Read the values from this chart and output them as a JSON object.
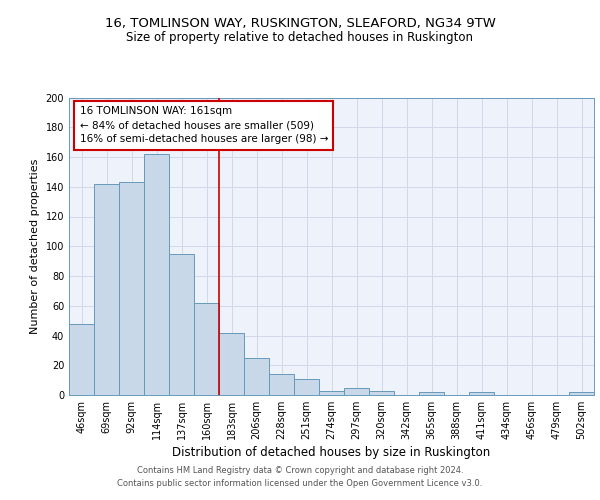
{
  "title1": "16, TOMLINSON WAY, RUSKINGTON, SLEAFORD, NG34 9TW",
  "title2": "Size of property relative to detached houses in Ruskington",
  "xlabel": "Distribution of detached houses by size in Ruskington",
  "ylabel": "Number of detached properties",
  "categories": [
    "46sqm",
    "69sqm",
    "92sqm",
    "114sqm",
    "137sqm",
    "160sqm",
    "183sqm",
    "206sqm",
    "228sqm",
    "251sqm",
    "274sqm",
    "297sqm",
    "320sqm",
    "342sqm",
    "365sqm",
    "388sqm",
    "411sqm",
    "434sqm",
    "456sqm",
    "479sqm",
    "502sqm"
  ],
  "values": [
    48,
    142,
    143,
    162,
    95,
    62,
    42,
    25,
    14,
    11,
    3,
    5,
    3,
    0,
    2,
    0,
    2,
    0,
    0,
    0,
    2
  ],
  "bar_color": "#c8d8e8",
  "bar_edge_color": "#6699bb",
  "grid_color": "#d0d8ea",
  "background_color": "#eef2fb",
  "vline_color": "#cc0000",
  "annotation_text": "16 TOMLINSON WAY: 161sqm\n← 84% of detached houses are smaller (509)\n16% of semi-detached houses are larger (98) →",
  "annotation_box_color": "#ffffff",
  "annotation_box_edge": "#cc0000",
  "footnote": "Contains HM Land Registry data © Crown copyright and database right 2024.\nContains public sector information licensed under the Open Government Licence v3.0.",
  "ylim": [
    0,
    200
  ],
  "yticks": [
    0,
    20,
    40,
    60,
    80,
    100,
    120,
    140,
    160,
    180,
    200
  ],
  "title1_fontsize": 9.5,
  "title2_fontsize": 8.5,
  "xlabel_fontsize": 8.5,
  "ylabel_fontsize": 8,
  "tick_fontsize": 7,
  "annot_fontsize": 7.5
}
